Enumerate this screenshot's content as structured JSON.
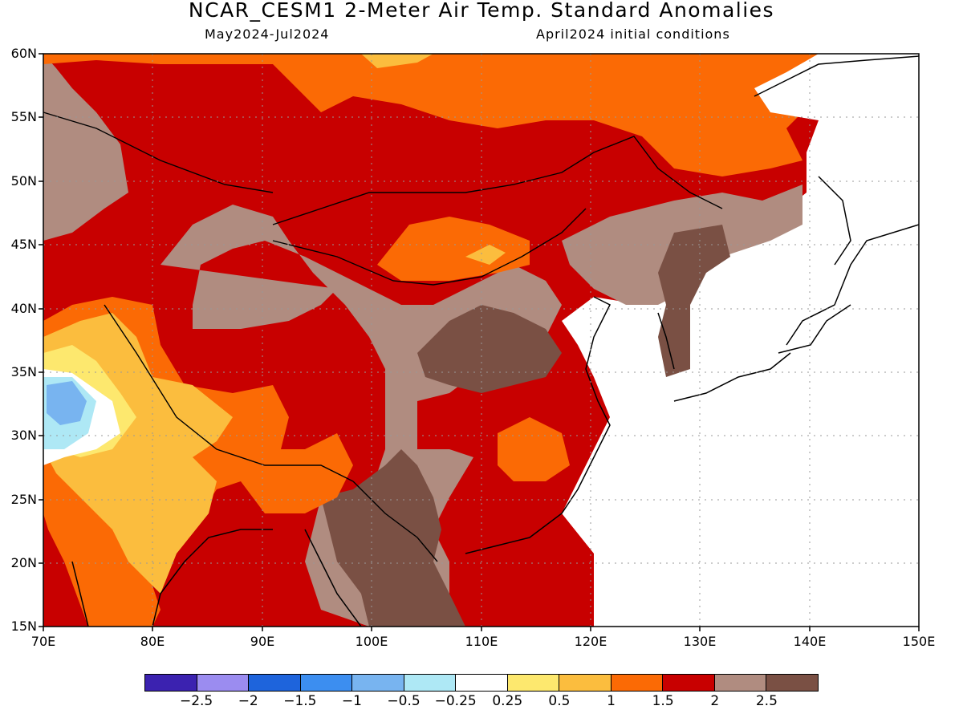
{
  "title": "NCAR_CESM1 2-Meter Air Temp. Standard Anomalies",
  "subtitle_left": "May2024-Jul2024",
  "subtitle_right": "April2024 initial conditions",
  "map": {
    "lon_range": [
      70,
      150
    ],
    "lat_range": [
      15,
      60
    ],
    "lat_ticks": [
      "60N",
      "55N",
      "50N",
      "45N",
      "40N",
      "35N",
      "30N",
      "25N",
      "20N",
      "15N"
    ],
    "lon_ticks": [
      "70E",
      "80E",
      "90E",
      "100E",
      "110E",
      "120E",
      "130E",
      "140E",
      "150E"
    ],
    "grid": "dotted"
  },
  "colorbar": {
    "colors": [
      "#3b22b0",
      "#9b8cf0",
      "#1e64dc",
      "#3c8ef0",
      "#78b4f0",
      "#aee8f5",
      "#ffffff",
      "#fde86e",
      "#fbbd3e",
      "#fb6a05",
      "#c80000",
      "#b08c80",
      "#7a5044"
    ],
    "labels": [
      "−2.5",
      "−2",
      "−1.5",
      "−1",
      "−0.5",
      "−0.25",
      "0.25",
      "0.5",
      "1",
      "1.5",
      "2",
      "2.5"
    ]
  }
}
